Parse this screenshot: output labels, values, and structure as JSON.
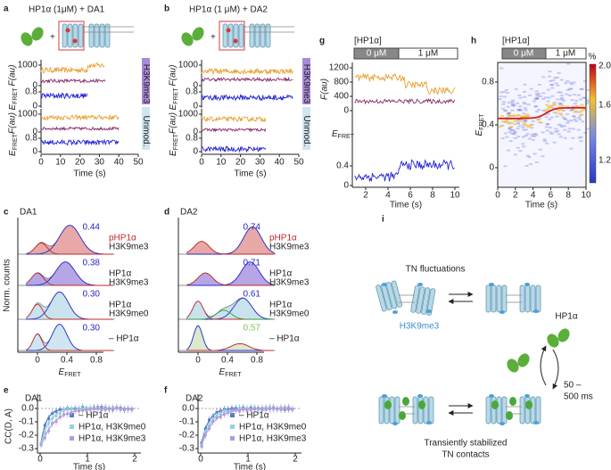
{
  "panel_a": {
    "label": "a",
    "title": "HP1α (1μM) + DA1",
    "f_axis_top": "F(au)",
    "e_axis_top": {
      "main": "E",
      "sub": "FRET"
    },
    "f_ticks_top": [
      "1000",
      "0"
    ],
    "e_ticks_top": [
      "0.8",
      "0"
    ],
    "tag_top": "H3K9me3",
    "f_axis_bottom": "F(au)",
    "e_axis_bottom": {
      "main": "E",
      "sub": "FRET"
    },
    "f_ticks_bottom": [
      "1000",
      "0"
    ],
    "e_ticks_bottom": [
      "0.8",
      "0"
    ],
    "tag_bottom": "Unmod.",
    "x_ticks": [
      "0",
      "10",
      "20",
      "30",
      "40",
      "50"
    ],
    "x_label": "Time (s)"
  },
  "panel_b": {
    "label": "b",
    "title": "HP1α (1 μM) + DA2",
    "f_axis_top": "F(au)",
    "e_axis_top": {
      "main": "E",
      "sub": "FRET"
    },
    "f_ticks_top": [
      "1000",
      "0"
    ],
    "e_ticks_top": [
      "0.8",
      "0"
    ],
    "tag_top": "H3K9me3",
    "f_axis_bottom": "F(au)",
    "e_axis_bottom": {
      "main": "E",
      "sub": "FRET"
    },
    "f_ticks_bottom": [
      "1000",
      "0"
    ],
    "e_ticks_bottom": [
      "0.8",
      "0"
    ],
    "tag_bottom": "Unmod.",
    "x_ticks": [
      "0",
      "10",
      "20",
      "30",
      "40",
      "50"
    ],
    "x_label": "Time (s)"
  },
  "panel_c": {
    "label": "c",
    "construct": "DA1",
    "y_label": "Norm. counts",
    "rows": [
      {
        "value": "0.44",
        "line1": "pHP1α",
        "line2": "H3K9me3"
      },
      {
        "value": "0.38",
        "line1": "HP1α",
        "line2": "H3K9me3"
      },
      {
        "value": "0.30",
        "line1": "HP1α",
        "line2": "H3K9me0"
      },
      {
        "value": "0.30",
        "line1": "– HP1α"
      }
    ],
    "x_ticks": [
      "0",
      "0.4",
      "0.8"
    ],
    "x_label": {
      "main": "E",
      "sub": "FRET"
    }
  },
  "panel_d": {
    "label": "d",
    "construct": "DA2",
    "rows": [
      {
        "value": "0.74",
        "line1": "pHP1α",
        "line2": "H3K9me3"
      },
      {
        "value": "0.71",
        "line1": "HP1α",
        "line2": "H3K9me3"
      },
      {
        "value": "0.61",
        "line1": "HP1α",
        "line2": "H3K9me0"
      },
      {
        "value": "0.57",
        "line1": "– HP1α"
      }
    ],
    "x_ticks": [
      "0",
      "0.4",
      "0.8"
    ],
    "x_label": {
      "main": "E",
      "sub": "FRET"
    }
  },
  "panel_e": {
    "label": "e",
    "construct": "DA1",
    "y_label": "CC(D, A)",
    "y_ticks": [
      "0.0",
      "-0.1",
      "-0.2",
      "-0.3"
    ],
    "x_ticks": [
      "0",
      "1",
      "2"
    ],
    "x_label": "Time (s)",
    "legend": [
      "– HP1α",
      "HP1α, H3K9me0",
      "HP1α, H3K9me3"
    ]
  },
  "panel_f": {
    "label": "f",
    "construct": "DA2",
    "y_ticks": [
      "0.0",
      "-0.1",
      "-0.2",
      "-0.3"
    ],
    "x_ticks": [
      "0",
      "1",
      "2"
    ],
    "x_label": "Time (s)",
    "legend": [
      "– HP1α",
      "HP1α, H3K9me0",
      "HP1α, H3K9me3"
    ]
  },
  "panel_g": {
    "label": "g",
    "conc_label": "[HP1α]",
    "conc_0": "0 μM",
    "conc_1": "1 μM",
    "f_axis": "F(au)",
    "f_ticks": [
      "1200",
      "800",
      "400",
      "0"
    ],
    "e_axis": {
      "main": "E",
      "sub": "FRET"
    },
    "e_ticks": [
      "0.4",
      "0"
    ],
    "x_ticks": [
      "2",
      "4",
      "6",
      "8",
      "10"
    ],
    "x_label": "Time (s)"
  },
  "panel_h": {
    "label": "h",
    "conc_label": "[HP1α]",
    "conc_0": "0 μM",
    "conc_1": "1 μM",
    "y_axis": {
      "main": "E",
      "sub": "FRET"
    },
    "y_ticks": [
      "0.8",
      "0.4",
      "0"
    ],
    "x_ticks": [
      "0",
      "2",
      "4",
      "6",
      "8",
      "10"
    ],
    "x_label": "Time (s)",
    "colorbar_unit": "%",
    "colorbar_ticks": [
      "2.0",
      "1.6",
      "1.2"
    ]
  },
  "panel_i": {
    "label": "i",
    "top_caption": "TN fluctuations",
    "mark_label": "H3K9me3",
    "protein": "HP1α",
    "time_1": "50 –",
    "time_2": "500 ms",
    "bottom_caption_1": "Transiently stabilized",
    "bottom_caption_2": "TN contacts"
  }
}
